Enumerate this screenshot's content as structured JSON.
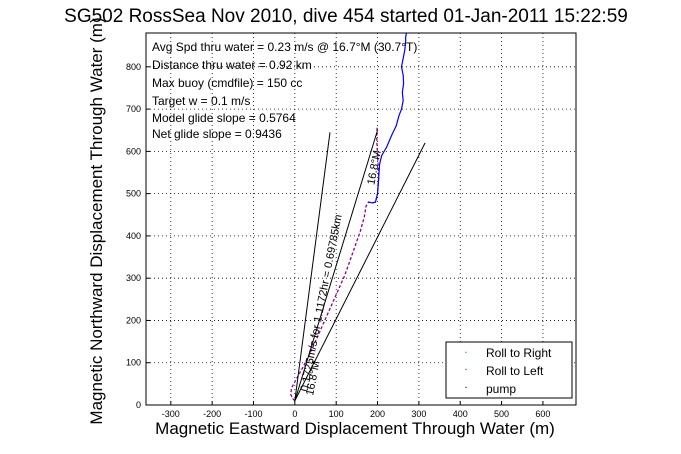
{
  "chart_data": {
    "type": "line",
    "title": "SG502 RossSea Nov 2010, dive 454 started 01-Jan-2011 15:22:59",
    "xlabel": "Magnetic Eastward Displacement Through Water (m)",
    "ylabel": "Magnetic Northward Displacement Through Water (m)",
    "xlim": [
      -360,
      680
    ],
    "ylim": [
      0,
      880
    ],
    "xticks": [
      -300,
      -200,
      -100,
      0,
      100,
      200,
      300,
      400,
      500,
      600
    ],
    "yticks": [
      0,
      100,
      200,
      300,
      400,
      500,
      600,
      700,
      800
    ],
    "grid": true,
    "info_lines": [
      "Avg Spd thru water =  0.23 m/s @  16.7°M (30.7°T)",
      "Distance thru water =  0.92 km",
      "Max buoy (cmdfile) = 150 cc",
      "Target w = 0.1 m/s",
      "Model glide slope = 0.5764",
      "Net glide slope = 0.9436"
    ],
    "annotations": [
      {
        "text": "0.1725m/s for 1.1172hr = 0.69785km",
        "x": 72,
        "y": 240,
        "angle": -79
      },
      {
        "text": "16.8°M",
        "x": 52,
        "y": 62,
        "angle": -79
      },
      {
        "text": "16.8°M",
        "x": 200,
        "y": 560,
        "angle": -79
      }
    ],
    "series": [
      {
        "style": "purple-dash",
        "color": "#8b008b",
        "x": [
          0,
          -5,
          -10,
          -8,
          0,
          20,
          45,
          70,
          95,
          120,
          140,
          158,
          168,
          172,
          178,
          188,
          195,
          200,
          203,
          200,
          198,
          199
        ],
        "y": [
          10,
          15,
          25,
          40,
          55,
          90,
          140,
          195,
          250,
          305,
          360,
          410,
          445,
          470,
          480,
          478,
          480,
          500,
          540,
          590,
          630,
          660
        ]
      },
      {
        "style": "blue-solid",
        "color": "#0000ff",
        "x": [
          178,
          188,
          195,
          200,
          203,
          205,
          210,
          222,
          235,
          245,
          252,
          258,
          262,
          260,
          263,
          262,
          258,
          262,
          266,
          268,
          268,
          270
        ],
        "y": [
          480,
          478,
          480,
          500,
          540,
          570,
          590,
          610,
          640,
          660,
          685,
          700,
          720,
          740,
          760,
          780,
          800,
          820,
          840,
          860,
          870,
          880
        ]
      },
      {
        "style": "black-line",
        "color": "#000000",
        "x": [
          0,
          85
        ],
        "y": [
          10,
          645
        ]
      },
      {
        "style": "black-line",
        "color": "#000000",
        "x": [
          0,
          315
        ],
        "y": [
          10,
          620
        ]
      },
      {
        "style": "black-line",
        "color": "#000000",
        "x": [
          0,
          200
        ],
        "y": [
          10,
          650
        ]
      }
    ],
    "legend": {
      "placement": "bottom-right",
      "entries": [
        {
          "label": "Roll to Right",
          "color": "#00b000"
        },
        {
          "label": "Roll to Left",
          "color": "#ff0000"
        },
        {
          "label": "pump",
          "color": "#000000"
        }
      ]
    }
  }
}
